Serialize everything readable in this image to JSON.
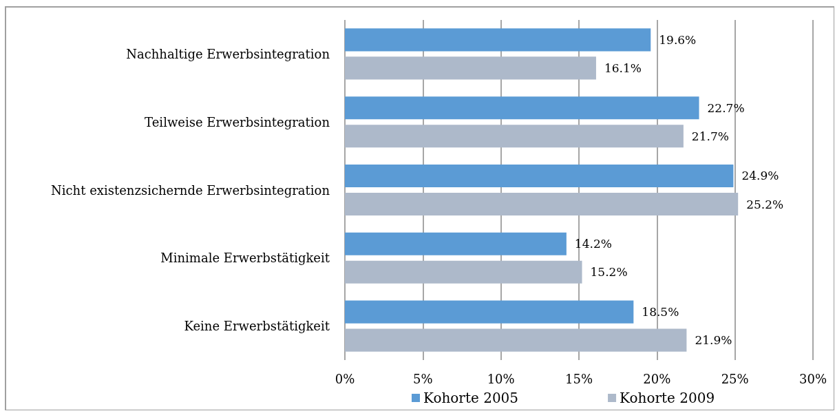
{
  "chart_data": {
    "type": "bar",
    "orientation": "horizontal",
    "categories": [
      "Nachhaltige Erwerbsintegration",
      "Teilweise Erwerbsintegration",
      "Nicht existenzsichernde Erwerbsintegration",
      "Minimale Erwerbstätigkeit",
      "Keine Erwerbstätigkeit"
    ],
    "series": [
      {
        "name": "Kohorte 2005",
        "color": "#5b9bd5",
        "values": [
          19.6,
          22.7,
          24.9,
          14.2,
          18.5
        ],
        "value_labels": [
          "19.6%",
          "22.7%",
          "24.9%",
          "14.2%",
          "18.5%"
        ]
      },
      {
        "name": "Kohorte 2009",
        "color": "#adb9ca",
        "values": [
          16.1,
          21.7,
          25.2,
          15.2,
          21.9
        ],
        "value_labels": [
          "16.1%",
          "21.7%",
          "25.2%",
          "15.2%",
          "21.9%"
        ]
      }
    ],
    "xlim": [
      0,
      30
    ],
    "xticks": [
      {
        "value": 0,
        "label": "0%"
      },
      {
        "value": 5,
        "label": "5%"
      },
      {
        "value": 10,
        "label": "10%"
      },
      {
        "value": 15,
        "label": "15%"
      },
      {
        "value": 20,
        "label": "20%"
      },
      {
        "value": 25,
        "label": "25%"
      },
      {
        "value": 30,
        "label": "30%"
      }
    ],
    "grid": "x",
    "legend": "bottom"
  }
}
